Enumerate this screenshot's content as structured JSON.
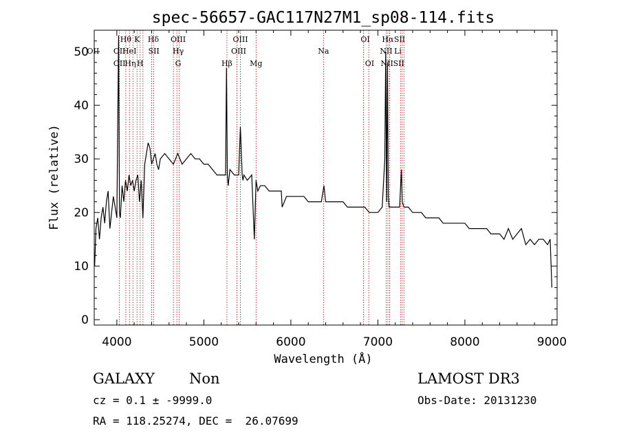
{
  "chart_data": {
    "type": "line",
    "title": "spec-56657-GAC117N27M1_sp08-114.fits",
    "xlabel": "Wavelength (Å)",
    "ylabel": "Flux (relative)",
    "xlim": [
      3740,
      9060
    ],
    "ylim": [
      -1,
      54
    ],
    "xticks": [
      4000,
      5000,
      6000,
      7000,
      8000,
      9000
    ],
    "xtick_labels": [
      "4000",
      "5000",
      "6000",
      "7000",
      "8000",
      "9000"
    ],
    "yticks": [
      0,
      10,
      20,
      30,
      40,
      50
    ],
    "ytick_labels": [
      "0",
      "10",
      "20",
      "30",
      "40",
      "50"
    ],
    "grid": false,
    "series": [
      {
        "x": [
          3745,
          3760,
          3780,
          3800,
          3820,
          3840,
          3860,
          3880,
          3900,
          3920,
          3940,
          3960,
          3980,
          4000,
          4020,
          4030,
          4040,
          4060,
          4080,
          4100,
          4120,
          4140,
          4160,
          4180,
          4200,
          4220,
          4240,
          4260,
          4280,
          4300,
          4320,
          4340,
          4360,
          4380,
          4400,
          4420,
          4440,
          4460,
          4480,
          4500,
          4550,
          4600,
          4650,
          4700,
          4750,
          4800,
          4850,
          4900,
          4950,
          5000,
          5050,
          5100,
          5150,
          5200,
          5250,
          5260,
          5270,
          5280,
          5300,
          5350,
          5400,
          5420,
          5440,
          5450,
          5460,
          5500,
          5550,
          5580,
          5600,
          5620,
          5650,
          5700,
          5750,
          5800,
          5850,
          5890,
          5900,
          5950,
          6000,
          6050,
          6100,
          6150,
          6200,
          6250,
          6300,
          6350,
          6380,
          6400,
          6450,
          6500,
          6550,
          6600,
          6650,
          6700,
          6750,
          6800,
          6850,
          6900,
          6950,
          7000,
          7050,
          7080,
          7090,
          7100,
          7110,
          7120,
          7130,
          7150,
          7200,
          7250,
          7270,
          7280,
          7300,
          7350,
          7400,
          7450,
          7500,
          7550,
          7600,
          7650,
          7700,
          7750,
          7800,
          7850,
          7900,
          7950,
          8000,
          8050,
          8100,
          8150,
          8200,
          8250,
          8300,
          8350,
          8400,
          8450,
          8500,
          8550,
          8600,
          8650,
          8700,
          8750,
          8800,
          8850,
          8900,
          8950,
          8980,
          9000
        ],
        "y": [
          10,
          17,
          19,
          15,
          19,
          21,
          18,
          22,
          24,
          17,
          20,
          23,
          21,
          19,
          53,
          20,
          19,
          25,
          22,
          26,
          24,
          27,
          25,
          26,
          24,
          26,
          27,
          22,
          26,
          19,
          29,
          31,
          33,
          32,
          29,
          30,
          31,
          29,
          28,
          30,
          31,
          30,
          29,
          31,
          29,
          30,
          31,
          30,
          30,
          29,
          29,
          28,
          27,
          27,
          27,
          47,
          27,
          25,
          28,
          27,
          27,
          36,
          27,
          26,
          27,
          26,
          27,
          15,
          26,
          24,
          25,
          25,
          24,
          24,
          24,
          24,
          21,
          23,
          23,
          23,
          23,
          23,
          22,
          22,
          22,
          22,
          25,
          22,
          22,
          22,
          22,
          22,
          21,
          21,
          21,
          21,
          21,
          20,
          20,
          20,
          21,
          30,
          50,
          22,
          48,
          23,
          21,
          21,
          21,
          21,
          28,
          22,
          21,
          21,
          20,
          20,
          20,
          19,
          19,
          19,
          19,
          18,
          18,
          18,
          18,
          18,
          18,
          17,
          17,
          17,
          17,
          17,
          16,
          16,
          16,
          15,
          17,
          15,
          16,
          17,
          14,
          15,
          14,
          15,
          15,
          14,
          15,
          6
        ]
      }
    ],
    "annotations": [
      {
        "label": "OII",
        "x": 3727,
        "row": 2
      },
      {
        "label": "OII",
        "x": 4030,
        "row": 2
      },
      {
        "label": "OII",
        "x": 4030,
        "row": 3
      },
      {
        "label": "Hθ",
        "x": 4103,
        "row": 1
      },
      {
        "label": "HeI",
        "x": 4145,
        "row": 2
      },
      {
        "label": "Hη",
        "x": 4155,
        "row": 3
      },
      {
        "label": "K",
        "x": 4232,
        "row": 1
      },
      {
        "label": "H",
        "x": 4268,
        "row": 3
      },
      {
        "label": "Hδ",
        "x": 4420,
        "row": 1
      },
      {
        "label": "SII",
        "x": 4425,
        "row": 2
      },
      {
        "label": "OIII",
        "x": 4705,
        "row": 1
      },
      {
        "label": "Hγ",
        "x": 4705,
        "row": 2
      },
      {
        "label": "G",
        "x": 4705,
        "row": 3
      },
      {
        "label": "Hβ",
        "x": 5265,
        "row": 3
      },
      {
        "label": "OIII",
        "x": 5420,
        "row": 1
      },
      {
        "label": "OIII",
        "x": 5400,
        "row": 2
      },
      {
        "label": "Mg",
        "x": 5600,
        "row": 3
      },
      {
        "label": "Na",
        "x": 6375,
        "row": 2
      },
      {
        "label": "OI",
        "x": 6855,
        "row": 1
      },
      {
        "label": "OI",
        "x": 6905,
        "row": 3
      },
      {
        "label": "Hα",
        "x": 7115,
        "row": 1
      },
      {
        "label": "NII",
        "x": 7095,
        "row": 2
      },
      {
        "label": "NII",
        "x": 7105,
        "row": 3
      },
      {
        "label": "SII",
        "x": 7250,
        "row": 1
      },
      {
        "label": "Li",
        "x": 7230,
        "row": 2
      },
      {
        "label": "SII",
        "x": 7240,
        "row": 3
      }
    ],
    "line_positions": [
      4030,
      4103,
      4145,
      4185,
      4232,
      4268,
      4300,
      4400,
      4425,
      4650,
      4690,
      4715,
      5265,
      5380,
      5420,
      5600,
      6375,
      6835,
      6895,
      7095,
      7115,
      7135,
      7260,
      7280,
      7300
    ],
    "colors": {
      "line": "#000000",
      "markers": "#b40000",
      "axes": "#000000"
    }
  },
  "info": {
    "object_class": "GALAXY",
    "subclass": "Non",
    "survey": "LAMOST DR3",
    "cz": "cz = 0.1 ± -9999.0",
    "obs_date": "Obs-Date: 20131230",
    "coords": "RA = 118.25274, DEC =  26.07699"
  }
}
